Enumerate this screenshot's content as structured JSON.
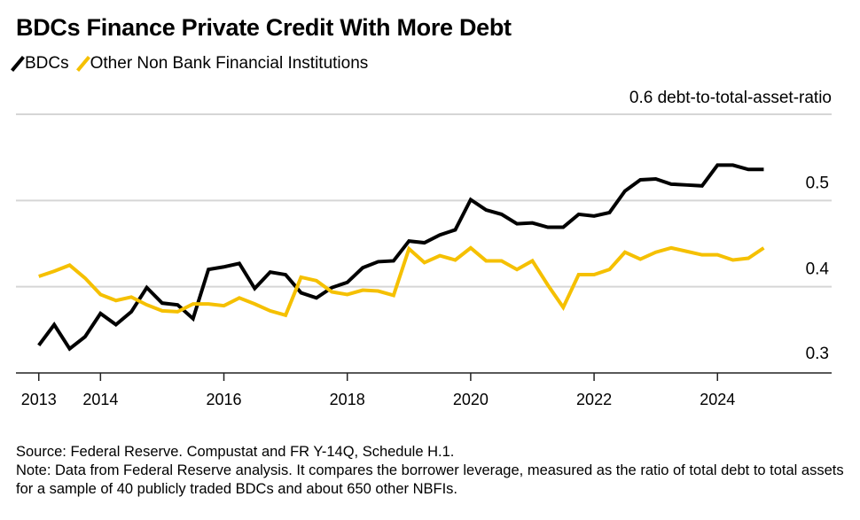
{
  "chart_data": {
    "type": "line",
    "title": "BDCs Finance Private Credit With More Debt",
    "ylabel": "debt-to-total-asset-ratio",
    "ylim": [
      0.3,
      0.6
    ],
    "yticks": [
      0.3,
      0.4,
      0.5,
      0.6
    ],
    "ytick_labels": [
      "0.3",
      "0.4",
      "0.5",
      "0.6 debt-to-total-asset-ratio"
    ],
    "xlim": [
      2012.63,
      2025.85
    ],
    "xticks": [
      2013,
      2014,
      2016,
      2018,
      2020,
      2022,
      2024
    ],
    "xtick_labels": [
      "2013",
      "2014",
      "2016",
      "2018",
      "2020",
      "2022",
      "2024"
    ],
    "x_start": 2013,
    "x_frequency": "quarterly",
    "grid": true,
    "legend": "top-left",
    "series": [
      {
        "name": "BDCs",
        "color": "#000000",
        "values": [
          0.332,
          0.356,
          0.328,
          0.342,
          0.369,
          0.356,
          0.371,
          0.399,
          0.381,
          0.379,
          0.363,
          0.42,
          0.423,
          0.427,
          0.398,
          0.417,
          0.414,
          0.393,
          0.387,
          0.399,
          0.405,
          0.422,
          0.429,
          0.43,
          0.453,
          0.451,
          0.46,
          0.466,
          0.501,
          0.489,
          0.484,
          0.473,
          0.474,
          0.469,
          0.469,
          0.484,
          0.482,
          0.486,
          0.511,
          0.524,
          0.525,
          0.519,
          0.518,
          0.517,
          0.541,
          0.541,
          0.536,
          0.536
        ]
      },
      {
        "name": "Other Non Bank Financial Institutions",
        "color": "#f5c000",
        "values": [
          0.412,
          0.418,
          0.425,
          0.41,
          0.391,
          0.384,
          0.388,
          0.379,
          0.372,
          0.371,
          0.38,
          0.38,
          0.378,
          0.387,
          0.38,
          0.372,
          0.367,
          0.411,
          0.407,
          0.394,
          0.391,
          0.396,
          0.395,
          0.39,
          0.444,
          0.428,
          0.436,
          0.431,
          0.445,
          0.43,
          0.43,
          0.42,
          0.43,
          0.402,
          0.376,
          0.414,
          0.414,
          0.42,
          0.44,
          0.432,
          0.44,
          0.445,
          0.441,
          0.437,
          0.437,
          0.431,
          0.433,
          0.445
        ]
      }
    ]
  },
  "notes": {
    "source": "Source: Federal Reserve. Compustat and FR Y-14Q, Schedule H.1.",
    "note": "Note: Data from Federal Reserve analysis. It compares the borrower leverage, measured as the ratio of total debt to total assets for a sample of 40 publicly traded BDCs and about 650 other NBFIs."
  }
}
